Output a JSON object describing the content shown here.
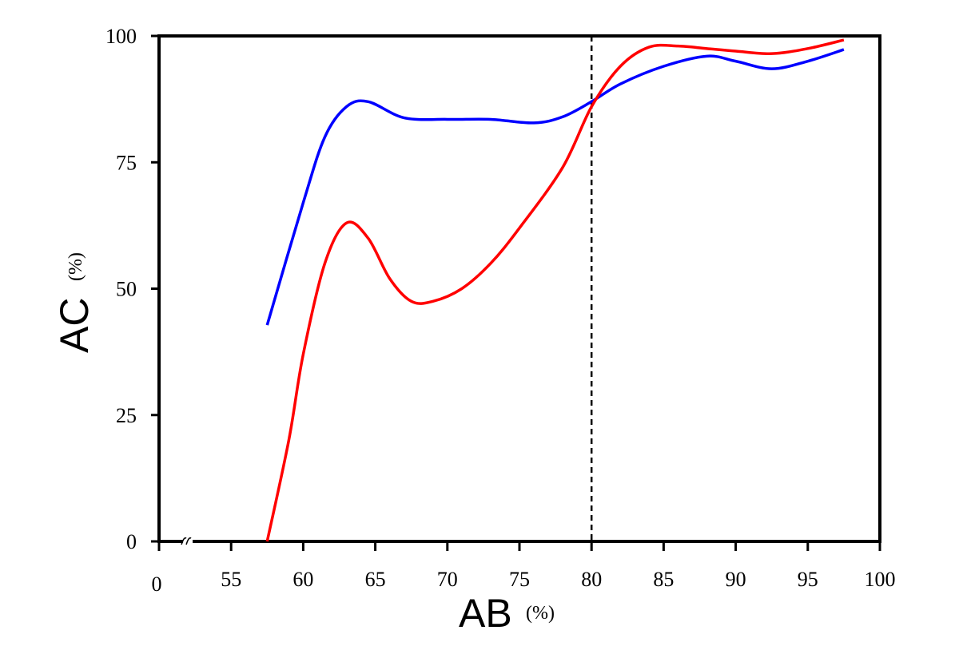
{
  "chart_data": {
    "type": "line",
    "x_label": "AB",
    "x_label_unit": "(%)",
    "y_label": "AC",
    "y_label_unit": "(%)",
    "xlim": [
      50,
      100
    ],
    "xticks": [
      {
        "value": 50,
        "label": "0"
      },
      55,
      60,
      65,
      70,
      75,
      80,
      85,
      90,
      95,
      100
    ],
    "ylim": [
      0,
      100
    ],
    "yticks": [
      0,
      25,
      50,
      75,
      100
    ],
    "vline": 80,
    "series": [
      {
        "color": "#0000ff",
        "x": [
          57.5,
          60,
          61.5,
          63,
          64.5,
          67,
          70,
          73,
          76,
          78,
          80,
          82,
          85,
          88,
          90,
          92.5,
          95,
          97.5
        ],
        "values": [
          42.8,
          67,
          80,
          86,
          87,
          83.8,
          83.5,
          83.5,
          82.8,
          84,
          87,
          90.5,
          94,
          96,
          95,
          93.5,
          95,
          97.3
        ]
      },
      {
        "color": "#ff0000",
        "x": [
          57.5,
          59,
          60,
          61.5,
          63,
          64.5,
          66,
          67.5,
          69,
          71,
          73,
          75,
          78,
          80,
          82,
          84,
          86,
          88,
          90,
          92.5,
          95,
          97.5
        ],
        "values": [
          0,
          20,
          37,
          55,
          63,
          60,
          52,
          47.5,
          47.5,
          50,
          55,
          62,
          74,
          86,
          94,
          97.8,
          98,
          97.5,
          97,
          96.5,
          97.5,
          99.2
        ]
      }
    ]
  }
}
